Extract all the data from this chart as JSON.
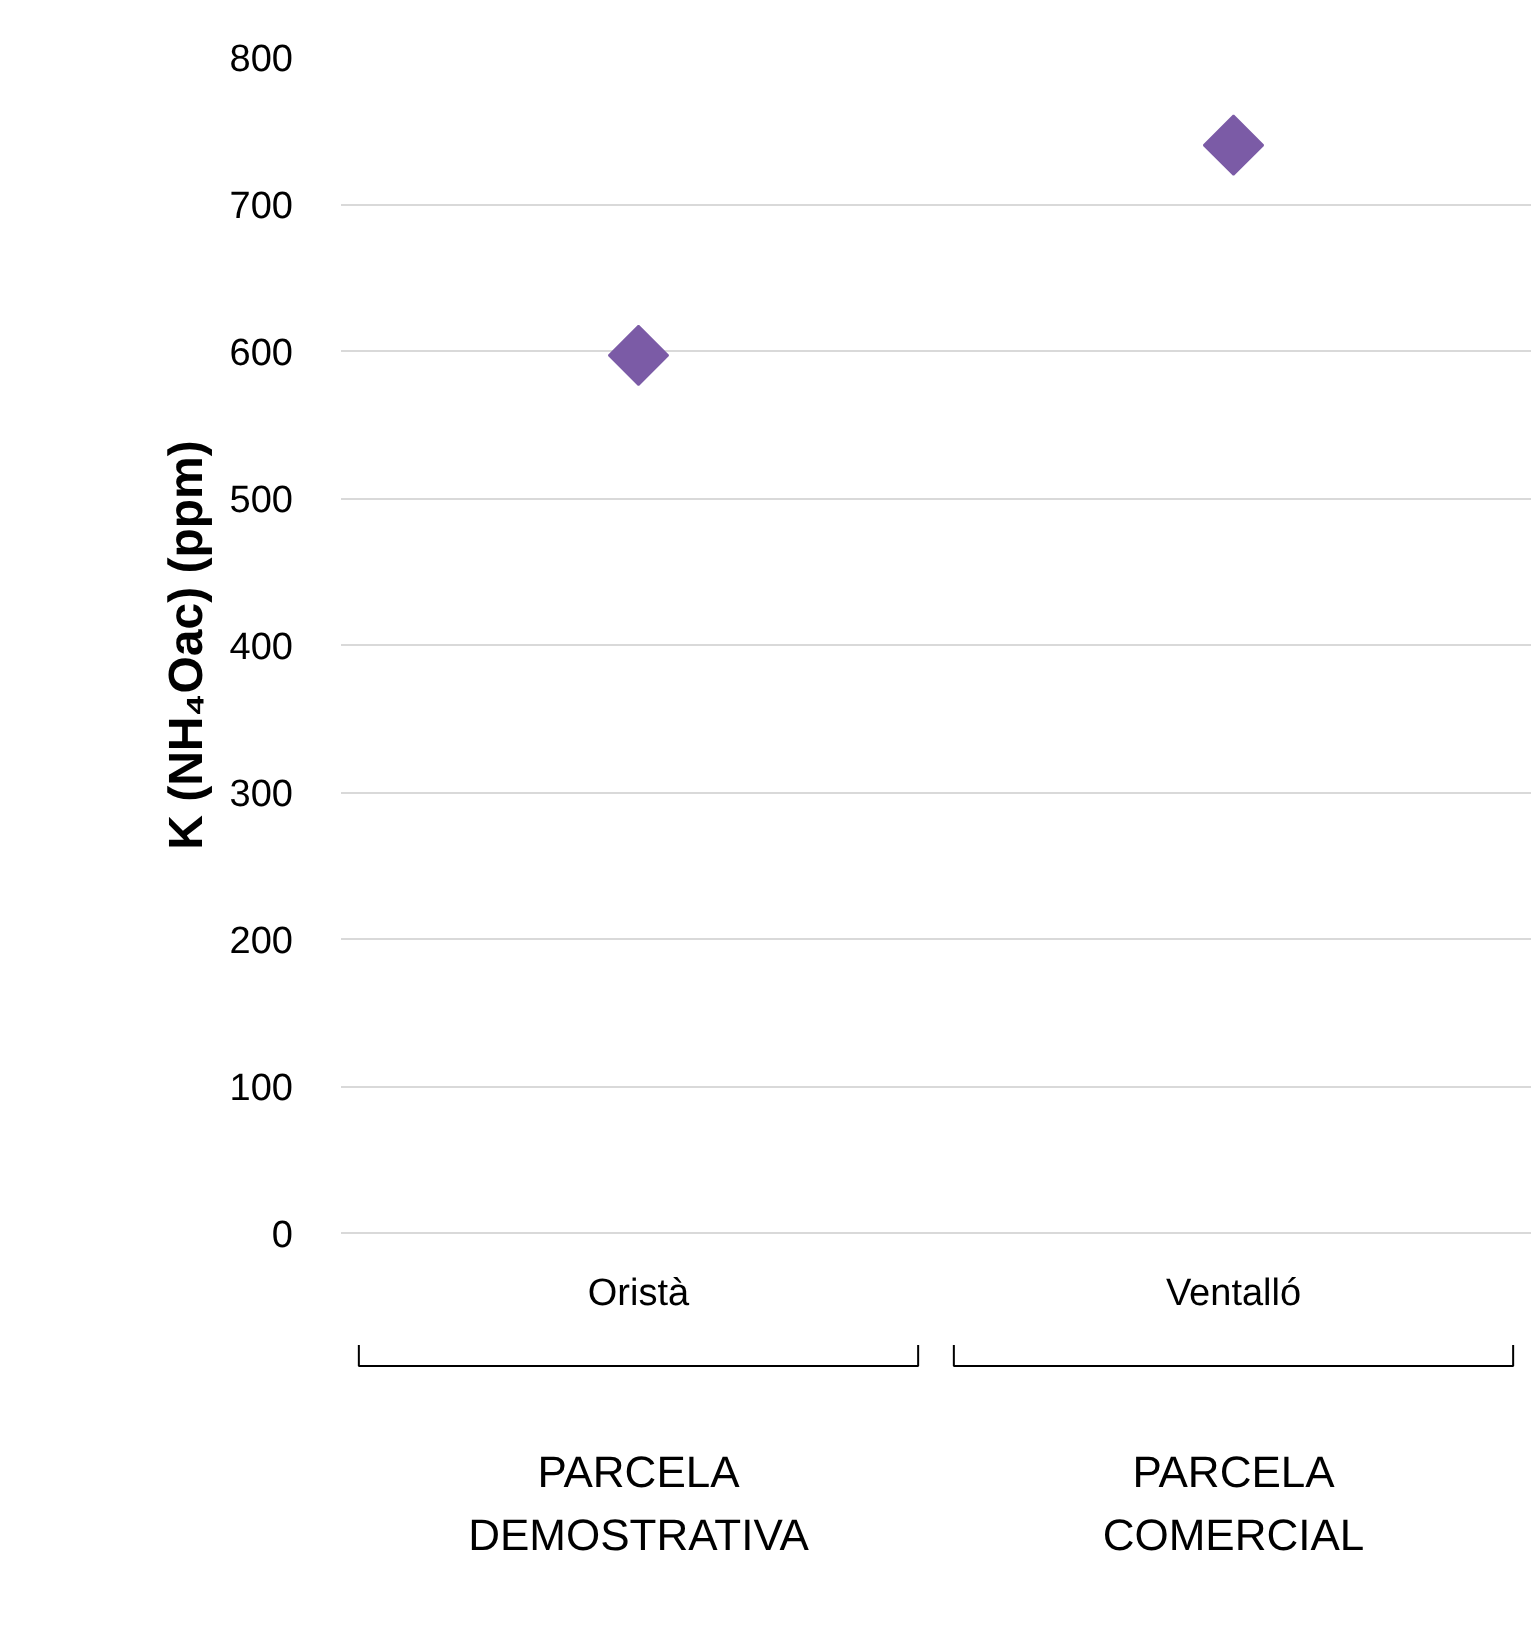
{
  "chart_data": {
    "type": "scatter",
    "ylabel": "K (NH₄Oac) (ppm)",
    "categories": [
      "Oristà",
      "Ventalló"
    ],
    "series": [
      {
        "color": "#7b5ba6",
        "values": [
          597,
          740
        ]
      }
    ],
    "ylim": [
      0,
      800
    ],
    "yticks": [
      0,
      100,
      200,
      300,
      400,
      500,
      600,
      700,
      800
    ],
    "grid": "y",
    "marker": "diamond",
    "annotations": [
      "PARCELA\nDEMOSTRATIVA",
      "PARCELA\nCOMERCIAL"
    ]
  }
}
